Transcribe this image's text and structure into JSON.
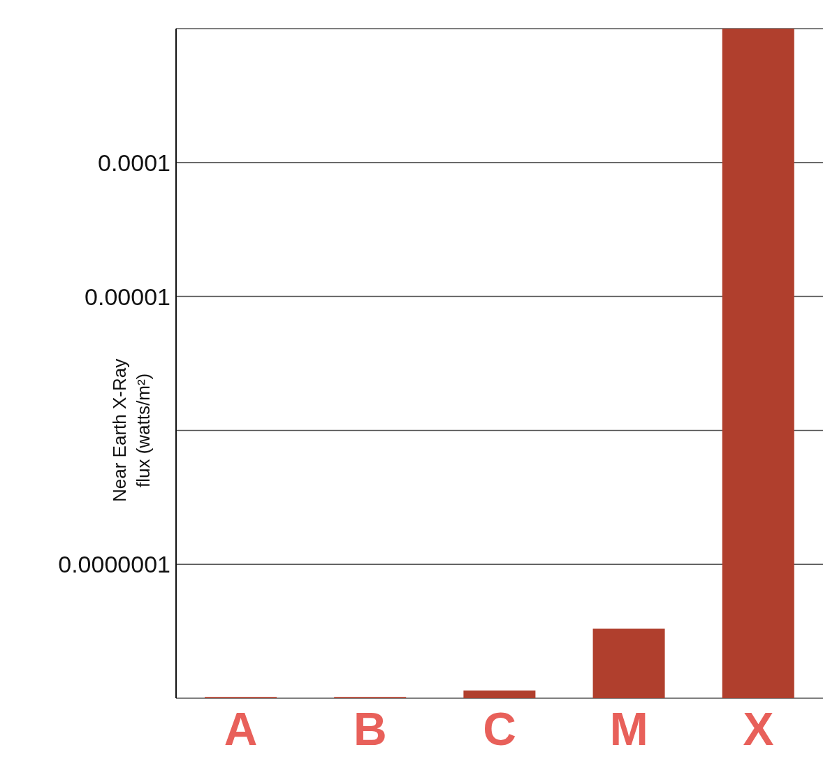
{
  "chart_data": {
    "type": "bar",
    "ylabel": "Near Earth X-Ray flux (watts/m²)",
    "categories": [
      "A",
      "B",
      "C",
      "M",
      "X"
    ],
    "values": [
      1.02e-08,
      1.02e-08,
      1.14e-08,
      3.3e-08,
      0.001
    ],
    "color": "#b03f2d",
    "log": true,
    "ylim": [
      1e-08,
      0.001
    ],
    "yticks": [
      {
        "value": 1e-08,
        "label": null
      },
      {
        "value": 1e-07,
        "label": "0.0000001"
      },
      {
        "value": 1e-06,
        "label": null
      },
      {
        "value": 1e-05,
        "label": "0.00001"
      },
      {
        "value": 0.0001,
        "label": "0.0001"
      },
      {
        "value": 0.001,
        "label": null
      }
    ],
    "grid": "y"
  }
}
